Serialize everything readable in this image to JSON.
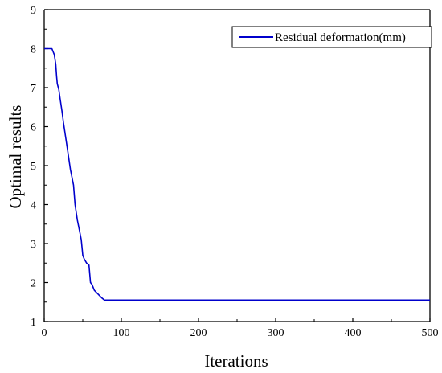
{
  "chart_data": {
    "type": "line",
    "title": "",
    "xlabel": "Iterations",
    "ylabel": "Optimal results",
    "xlim": [
      0,
      500
    ],
    "ylim": [
      1,
      9
    ],
    "x_ticks": [
      0,
      100,
      200,
      300,
      400,
      500
    ],
    "y_ticks": [
      1,
      2,
      3,
      4,
      5,
      6,
      7,
      8,
      9
    ],
    "grid": false,
    "legend_position": "top-right",
    "series": [
      {
        "name": "Residual deformation(mm)",
        "color": "#0000cc",
        "x": [
          0,
          10,
          13,
          15,
          16,
          17,
          19,
          20,
          23,
          25,
          28,
          31,
          34,
          35,
          38,
          40,
          43,
          46,
          48,
          50,
          52,
          55,
          58,
          60,
          62,
          65,
          70,
          75,
          78,
          100,
          200,
          300,
          400,
          500
        ],
        "y": [
          8.0,
          8.0,
          7.85,
          7.6,
          7.3,
          7.1,
          6.95,
          6.8,
          6.4,
          6.1,
          5.7,
          5.3,
          4.9,
          4.8,
          4.5,
          4.0,
          3.6,
          3.3,
          3.1,
          2.7,
          2.6,
          2.5,
          2.45,
          2.0,
          1.95,
          1.8,
          1.7,
          1.6,
          1.55,
          1.55,
          1.55,
          1.55,
          1.55,
          1.55
        ]
      }
    ]
  }
}
